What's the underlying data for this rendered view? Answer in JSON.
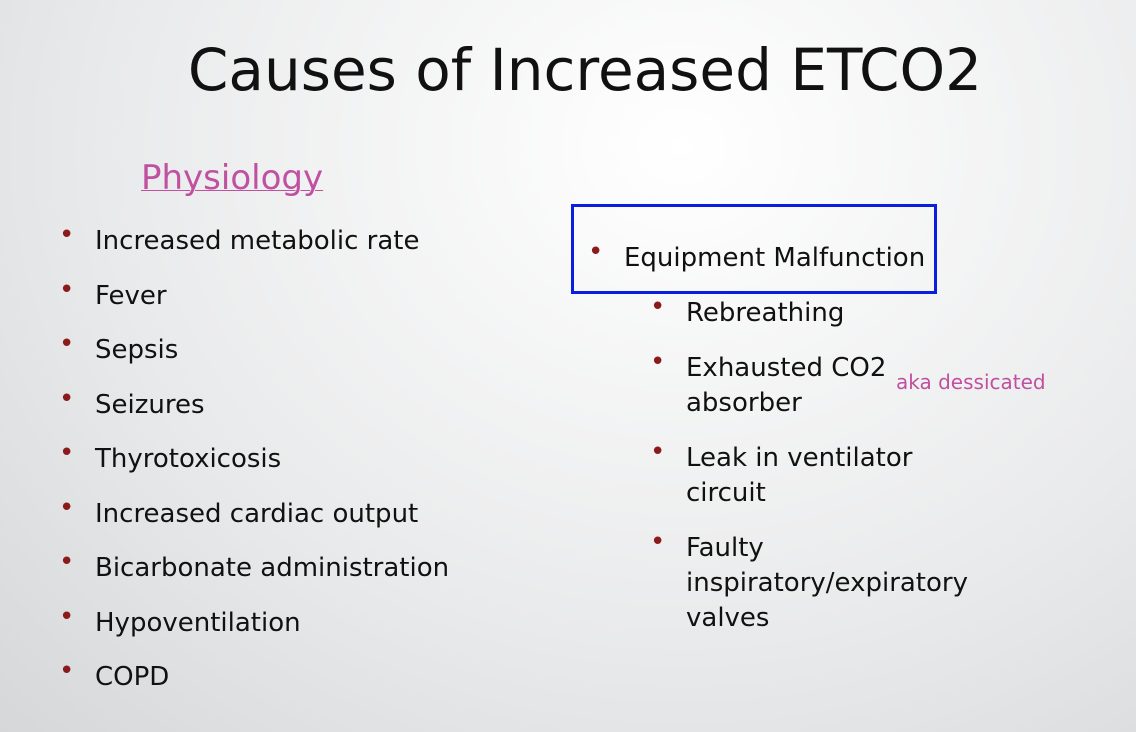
{
  "title": "Causes of Increased ETCO2",
  "left": {
    "heading": "Physiology",
    "items": [
      "Increased metabolic rate",
      "Fever",
      "Sepsis",
      "Seizures",
      "Thyrotoxicosis",
      "Increased cardiac output",
      "Bicarbonate administration",
      "Hypoventilation",
      "COPD"
    ]
  },
  "right": {
    "heading": "Equipment Malfunction",
    "items": [
      "Rebreathing",
      "Exhausted CO2 absorber",
      "Leak in ventilator circuit",
      "Faulty inspiratory/expiratory valves"
    ],
    "note": "aka dessicated"
  }
}
